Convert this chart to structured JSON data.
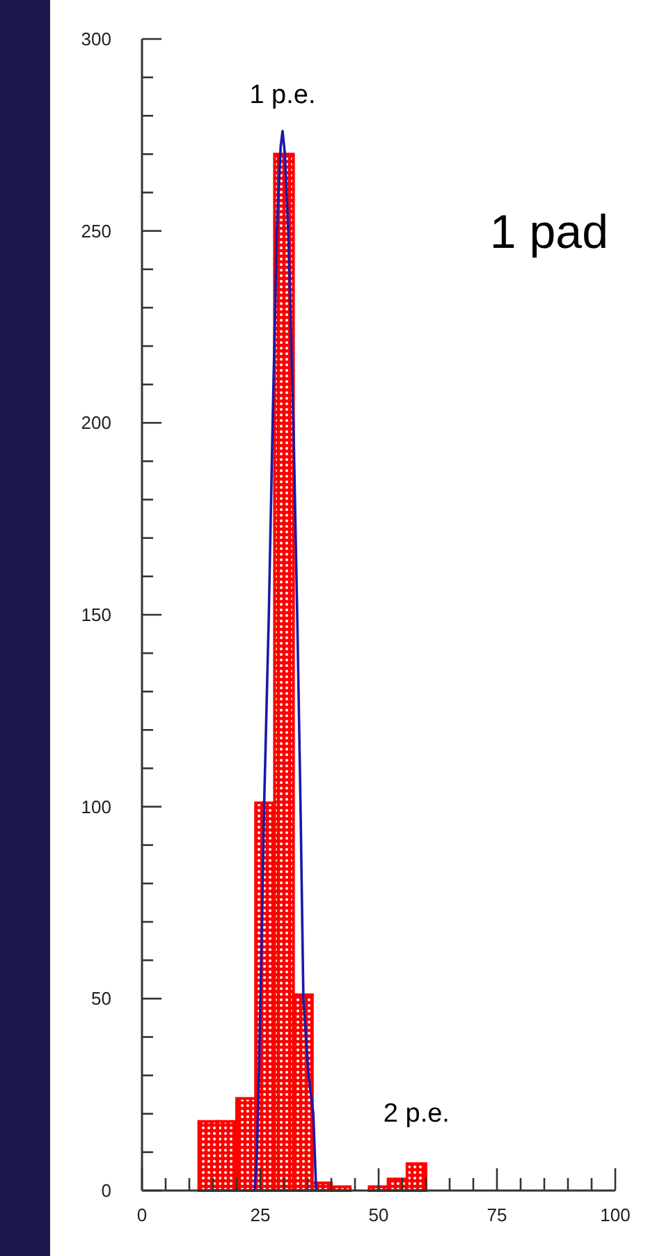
{
  "chart_data": {
    "type": "histogram",
    "bins": [
      12,
      16,
      20,
      24,
      28,
      32,
      36,
      40,
      44,
      48,
      52,
      56,
      60
    ],
    "series": [
      {
        "color": "#ff0000",
        "values": [
          18,
          18,
          24,
          101,
          270,
          51,
          2,
          1,
          0,
          1,
          3,
          7
        ]
      },
      {
        "type": "line",
        "color": "#1a1aa8",
        "x": [
          23.8,
          24.3,
          24.7,
          25.2,
          25.8,
          26.8,
          27.6,
          28.5,
          29.3,
          29.7,
          30.2,
          30.9,
          32,
          32.8,
          33.5,
          34.1,
          35.2,
          36.2,
          36.8
        ],
        "values": [
          0,
          10,
          30,
          60,
          100,
          150,
          200,
          250,
          272,
          276,
          270,
          250,
          200,
          150,
          100,
          50,
          30,
          20,
          0
        ]
      }
    ],
    "xlim": [
      0,
      100
    ],
    "ylim": [
      0,
      300
    ],
    "xticks": [
      0,
      {
        "value": 5,
        "label": null
      },
      {
        "value": 10,
        "label": null
      },
      {
        "value": 15,
        "label": null
      },
      {
        "value": 20,
        "label": null
      },
      25,
      {
        "value": 30,
        "label": null
      },
      {
        "value": 35,
        "label": null
      },
      {
        "value": 40,
        "label": null
      },
      {
        "value": 45,
        "label": null
      },
      50,
      {
        "value": 55,
        "label": null
      },
      {
        "value": 60,
        "label": null
      },
      {
        "value": 65,
        "label": null
      },
      {
        "value": 70,
        "label": null
      },
      75,
      {
        "value": 80,
        "label": null
      },
      {
        "value": 85,
        "label": null
      },
      {
        "value": 90,
        "label": null
      },
      {
        "value": 95,
        "label": null
      },
      100
    ],
    "yticks": [
      0,
      {
        "value": 10,
        "label": null
      },
      {
        "value": 20,
        "label": null
      },
      {
        "value": 30,
        "label": null
      },
      {
        "value": 40,
        "label": null
      },
      50,
      {
        "value": 60,
        "label": null
      },
      {
        "value": 70,
        "label": null
      },
      {
        "value": 80,
        "label": null
      },
      {
        "value": 90,
        "label": null
      },
      100,
      {
        "value": 110,
        "label": null
      },
      {
        "value": 120,
        "label": null
      },
      {
        "value": 130,
        "label": null
      },
      {
        "value": 140,
        "label": null
      },
      150,
      {
        "value": 160,
        "label": null
      },
      {
        "value": 170,
        "label": null
      },
      {
        "value": 180,
        "label": null
      },
      {
        "value": 190,
        "label": null
      },
      200,
      {
        "value": 210,
        "label": null
      },
      {
        "value": 220,
        "label": null
      },
      {
        "value": 230,
        "label": null
      },
      {
        "value": 240,
        "label": null
      },
      250,
      {
        "value": 260,
        "label": null
      },
      {
        "value": 270,
        "label": null
      },
      {
        "value": 280,
        "label": null
      },
      {
        "value": 290,
        "label": null
      },
      300
    ],
    "annotations": [
      {
        "text": "1 p.e.",
        "x": 29.7,
        "y": 276
      },
      {
        "text": "2 p.e.",
        "x": 58,
        "y": 7
      },
      "1 pad"
    ]
  }
}
